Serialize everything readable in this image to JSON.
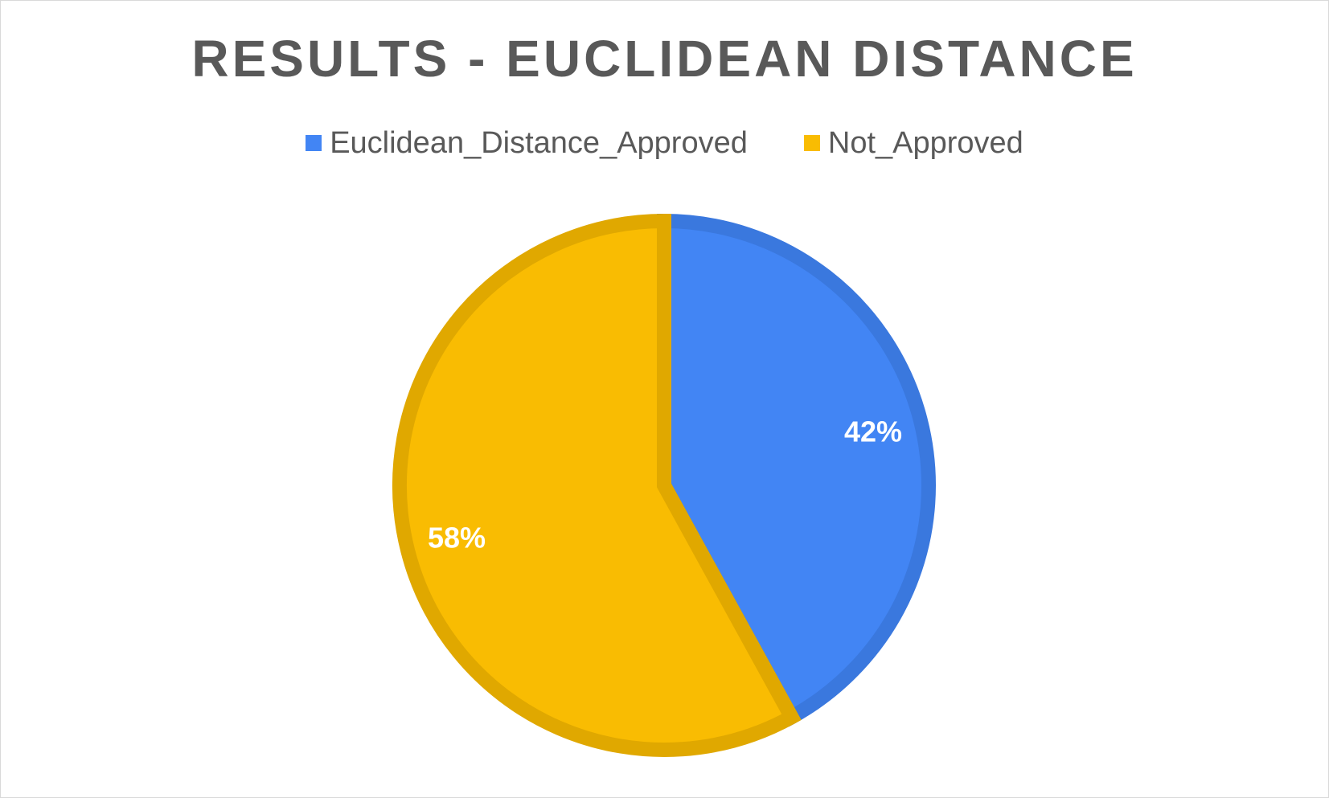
{
  "chart_data": {
    "type": "pie",
    "title": "RESULTS - EUCLIDEAN DISTANCE",
    "categories": [
      "Euclidean_Distance_Approved",
      "Not_Approved"
    ],
    "values": [
      42,
      58
    ],
    "data_labels": [
      "42%",
      "58%"
    ],
    "colors": [
      "#4285f4",
      "#f9bc02"
    ],
    "border_colors": [
      "#3a78de",
      "#e0a800"
    ],
    "legend_position": "top"
  }
}
